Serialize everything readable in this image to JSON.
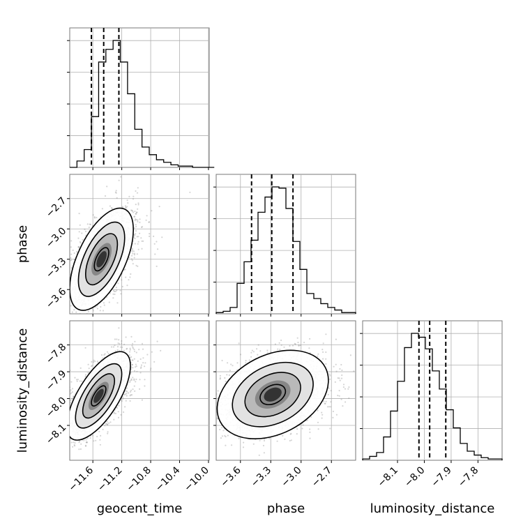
{
  "chart_data": {
    "type": "corner",
    "parameters": [
      "geocent_time",
      "phase",
      "luminosity_distance"
    ],
    "axis_labels": {
      "geocent_time": "geocent_time",
      "phase": "phase",
      "luminosity_distance": "luminosity_distance"
    },
    "ticks": {
      "geocent_time": [
        "−11.6",
        "−11.2",
        "−10.8",
        "−10.4",
        "−10.0"
      ],
      "phase": [
        "−3.6",
        "−3.3",
        "−3.0",
        "−2.7"
      ],
      "luminosity_distance": [
        "−8.1",
        "−8.0",
        "−7.9",
        "−7.8"
      ]
    },
    "tick_values": {
      "geocent_time": [
        -11.6,
        -11.2,
        -10.8,
        -10.4,
        -10.0
      ],
      "phase": [
        -3.6,
        -3.3,
        -3.0,
        -2.7
      ],
      "luminosity_distance": [
        -8.1,
        -8.0,
        -7.9,
        -7.8
      ]
    },
    "ranges": {
      "geocent_time": [
        -11.92,
        -9.99
      ],
      "phase": [
        -3.84,
        -2.46
      ],
      "luminosity_distance": [
        -8.23,
        -7.71
      ]
    },
    "quantiles": {
      "geocent_time": [
        -11.62,
        -11.45,
        -11.24
      ],
      "phase": [
        -3.49,
        -3.29,
        -3.08
      ],
      "luminosity_distance": [
        -8.02,
        -7.98,
        -7.92
      ]
    },
    "histograms": {
      "geocent_time": {
        "edges_start": -11.92,
        "bin_width": 0.1,
        "counts": [
          0,
          0.05,
          0.14,
          0.4,
          0.83,
          0.93,
          1.0,
          0.83,
          0.58,
          0.3,
          0.16,
          0.1,
          0.06,
          0.04,
          0.02,
          0.01,
          0.01,
          0,
          0,
          0
        ]
      },
      "phase": {
        "edges_start": -3.84,
        "bin_width": 0.069,
        "counts": [
          0.01,
          0.02,
          0.05,
          0.24,
          0.41,
          0.58,
          0.8,
          0.92,
          1.0,
          0.99,
          0.83,
          0.57,
          0.35,
          0.16,
          0.12,
          0.08,
          0.05,
          0.03,
          0.01,
          0.01
        ]
      },
      "luminosity_distance": {
        "edges_start": -8.23,
        "bin_width": 0.026,
        "counts": [
          0.01,
          0.03,
          0.06,
          0.18,
          0.38,
          0.61,
          0.87,
          0.98,
          0.95,
          0.86,
          0.69,
          0.55,
          0.39,
          0.25,
          0.13,
          0.07,
          0.04,
          0.02,
          0.01,
          0.01
        ]
      }
    },
    "joint": [
      {
        "x": "geocent_time",
        "y": "phase",
        "center": [
          -11.48,
          -3.3
        ],
        "sigma": [
          0.2,
          0.23
        ],
        "rho": 0.58
      },
      {
        "x": "geocent_time",
        "y": "luminosity_distance",
        "center": [
          -11.52,
          -7.99
        ],
        "sigma": [
          0.2,
          0.075
        ],
        "rho": 0.68
      },
      {
        "x": "phase",
        "y": "luminosity_distance",
        "center": [
          -3.28,
          -7.985
        ],
        "sigma": [
          0.25,
          0.075
        ],
        "rho": 0.32
      }
    ],
    "grid": true,
    "legend": "none"
  }
}
